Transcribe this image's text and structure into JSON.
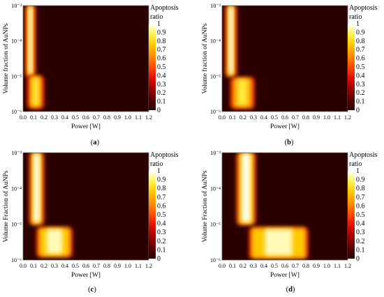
{
  "figure": {
    "colorbar_title_line1": "Apoptosis",
    "colorbar_title_line2": "ratio",
    "colorbar_ticks": [
      "1",
      "0.9",
      "0.8",
      "0.7",
      "0.6",
      "0.5",
      "0.4",
      "0.3",
      "0.2",
      "0.1",
      "0"
    ],
    "colormap": [
      "#2a0000",
      "#5a0000",
      "#a00000",
      "#e01000",
      "#ff4a00",
      "#ff8c00",
      "#ffc400",
      "#fff34a",
      "#ffffff"
    ]
  },
  "chart_data": [
    {
      "type": "heatmap",
      "panel_label": "(a)",
      "xlabel": "Power [W]",
      "ylabel": "Volume fraction of AuNPs",
      "x_ticks": [
        "0.0",
        "0.1",
        "0.2",
        "0.3",
        "0.4",
        "0.5",
        "0.6",
        "0.7",
        "0.8",
        "0.9",
        "1.0",
        "1.1",
        "1.2"
      ],
      "y_ticks": [
        "10⁻³",
        "10⁻⁴",
        "10⁻⁵",
        "10⁻⁶"
      ],
      "xlim": [
        0,
        1.2
      ],
      "ylim_log10": [
        -6,
        -3
      ],
      "y_scale": "log",
      "value_range": [
        0,
        1
      ],
      "regions": [
        {
          "x": [
            0.04,
            0.1
          ],
          "log10_y": [
            -5.0,
            -3.0
          ],
          "value": 1.0
        },
        {
          "x": [
            0.06,
            0.18
          ],
          "log10_y": [
            -5.9,
            -5.0
          ],
          "value": 0.85
        }
      ]
    },
    {
      "type": "heatmap",
      "panel_label": "(b)",
      "xlabel": "Power [W]",
      "ylabel": "Volume fraction of AuNPs",
      "x_ticks": [
        "0.0",
        "0.1",
        "0.2",
        "0.3",
        "0.4",
        "0.5",
        "0.6",
        "0.7",
        "0.8",
        "0.9",
        "1.0",
        "1.1",
        "1.2"
      ],
      "y_ticks": [
        "10⁻³",
        "10⁻⁴",
        "10⁻⁵",
        "10⁻⁶"
      ],
      "xlim": [
        0,
        1.2
      ],
      "ylim_log10": [
        -6,
        -3
      ],
      "y_scale": "log",
      "value_range": [
        0,
        1
      ],
      "regions": [
        {
          "x": [
            0.05,
            0.12
          ],
          "log10_y": [
            -5.0,
            -3.0
          ],
          "value": 1.0
        },
        {
          "x": [
            0.1,
            0.29
          ],
          "log10_y": [
            -5.9,
            -5.05
          ],
          "value": 0.85
        }
      ]
    },
    {
      "type": "heatmap",
      "panel_label": "(c)",
      "xlabel": "Power [W]",
      "ylabel": "Volume Fraction of AuNPs",
      "x_ticks": [
        "0.0",
        "0.1",
        "0.2",
        "0.3",
        "0.4",
        "0.5",
        "0.6",
        "0.7",
        "0.8",
        "0.9",
        "1.0",
        "1.1",
        "1.2"
      ],
      "y_ticks": [
        "10⁻³",
        "10⁻⁴",
        "10⁻⁵",
        "10⁻⁶"
      ],
      "xlim": [
        0,
        1.2
      ],
      "ylim_log10": [
        -6,
        -3
      ],
      "y_scale": "log",
      "value_range": [
        0,
        1
      ],
      "regions": [
        {
          "x": [
            0.08,
            0.18
          ],
          "log10_y": [
            -5.0,
            -3.0
          ],
          "value": 1.0
        },
        {
          "x": [
            0.15,
            0.45
          ],
          "log10_y": [
            -5.9,
            -5.1
          ],
          "value": 0.95
        }
      ]
    },
    {
      "type": "heatmap",
      "panel_label": "(d)",
      "xlabel": "Power [W]",
      "ylabel": "Volume Fraction of AuNPs",
      "x_ticks": [
        "0.0",
        "0.1",
        "0.2",
        "0.3",
        "0.4",
        "0.5",
        "0.6",
        "0.7",
        "0.8",
        "0.9",
        "1.0",
        "1.1",
        "1.2"
      ],
      "y_ticks": [
        "10⁻³",
        "10⁻⁴",
        "10⁻⁵",
        "10⁻⁶"
      ],
      "xlim": [
        0,
        1.2
      ],
      "ylim_log10": [
        -6,
        -3
      ],
      "y_scale": "log",
      "value_range": [
        0,
        1
      ],
      "regions": [
        {
          "x": [
            0.16,
            0.3
          ],
          "log10_y": [
            -5.0,
            -3.0
          ],
          "value": 1.0
        },
        {
          "x": [
            0.28,
            0.8
          ],
          "log10_y": [
            -5.95,
            -5.1
          ],
          "value": 0.95
        }
      ]
    }
  ]
}
